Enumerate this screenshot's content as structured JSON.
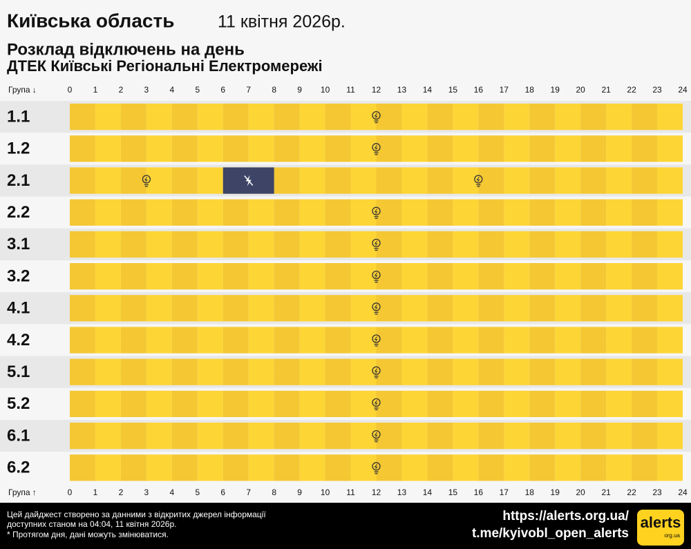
{
  "header": {
    "region": "Київська область",
    "date": "11 квітня 2026р.",
    "subtitle": "Розклад відключень на день",
    "company": "ДТЕК Київські Регіональні Електромережі"
  },
  "axis": {
    "top_label": "Група ↓",
    "bottom_label": "Група ↑",
    "hours": [
      0,
      1,
      2,
      3,
      4,
      5,
      6,
      7,
      8,
      9,
      10,
      11,
      12,
      13,
      14,
      15,
      16,
      17,
      18,
      19,
      20,
      21,
      22,
      23,
      24
    ]
  },
  "groups": [
    {
      "name": "1.1",
      "outages": []
    },
    {
      "name": "1.2",
      "outages": []
    },
    {
      "name": "2.1",
      "outages": [
        {
          "start": 6,
          "end": 8
        }
      ]
    },
    {
      "name": "2.2",
      "outages": []
    },
    {
      "name": "3.1",
      "outages": []
    },
    {
      "name": "3.2",
      "outages": []
    },
    {
      "name": "4.1",
      "outages": []
    },
    {
      "name": "4.2",
      "outages": []
    },
    {
      "name": "5.1",
      "outages": []
    },
    {
      "name": "5.2",
      "outages": []
    },
    {
      "name": "6.1",
      "outages": []
    },
    {
      "name": "6.2",
      "outages": []
    }
  ],
  "footer": {
    "note": [
      "Цей дайджест створено за данними з відкритих джерел інформації",
      "доступних станом на 04:04, 11 квітня 2026р.",
      "* Протягом дня, дані можуть змінюватися."
    ],
    "links": [
      "https://alerts.org.ua/",
      "t.me/kyivobl_open_alerts"
    ],
    "logo": "alerts",
    "logo_sub": "org.ua"
  }
}
